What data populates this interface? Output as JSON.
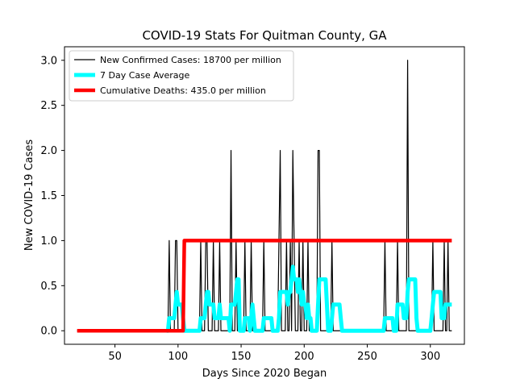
{
  "chart_data": {
    "type": "line",
    "title": "COVID-19 Stats For Quitman County, GA",
    "xlabel": "Days Since 2020 Began",
    "ylabel": "New COVID-19 Cases",
    "xlim": [
      10,
      327
    ],
    "ylim": [
      -0.15,
      3.15
    ],
    "xticks": [
      50,
      100,
      150,
      200,
      250,
      300
    ],
    "yticks": [
      0.0,
      0.5,
      1.0,
      1.5,
      2.0,
      2.5,
      3.0
    ],
    "xtick_labels": [
      "50",
      "100",
      "150",
      "200",
      "250",
      "300"
    ],
    "ytick_labels": [
      "0.0",
      "0.5",
      "1.0",
      "1.5",
      "2.0",
      "2.5",
      "3.0"
    ],
    "grid": false,
    "legend_position": "top-left",
    "series": [
      {
        "name": "New Confirmed Cases: 18700 per million",
        "color": "#000000",
        "points": [
          [
            20,
            0
          ],
          [
            92,
            0
          ],
          [
            93,
            1
          ],
          [
            94,
            0
          ],
          [
            97,
            0
          ],
          [
            98,
            1
          ],
          [
            99,
            1
          ],
          [
            100,
            0
          ],
          [
            117,
            0
          ],
          [
            118,
            1
          ],
          [
            119,
            0
          ],
          [
            121,
            0
          ],
          [
            122,
            1
          ],
          [
            123,
            1
          ],
          [
            124,
            0
          ],
          [
            127,
            0
          ],
          [
            128,
            1
          ],
          [
            129,
            0
          ],
          [
            132,
            0
          ],
          [
            133,
            1
          ],
          [
            134,
            0
          ],
          [
            141,
            0
          ],
          [
            142,
            2
          ],
          [
            143,
            0
          ],
          [
            145,
            0
          ],
          [
            146,
            1
          ],
          [
            147,
            0
          ],
          [
            152,
            0
          ],
          [
            153,
            1
          ],
          [
            154,
            0
          ],
          [
            157,
            0
          ],
          [
            158,
            1
          ],
          [
            159,
            0
          ],
          [
            167,
            0
          ],
          [
            168,
            1
          ],
          [
            169,
            0
          ],
          [
            179,
            0
          ],
          [
            180,
            1
          ],
          [
            181,
            2
          ],
          [
            182,
            0
          ],
          [
            185,
            0
          ],
          [
            186,
            1
          ],
          [
            187,
            0
          ],
          [
            188,
            0
          ],
          [
            189,
            1
          ],
          [
            190,
            0
          ],
          [
            191,
            2
          ],
          [
            192,
            1
          ],
          [
            193,
            0
          ],
          [
            195,
            0
          ],
          [
            196,
            1
          ],
          [
            197,
            0
          ],
          [
            198,
            0
          ],
          [
            199,
            1
          ],
          [
            200,
            0
          ],
          [
            202,
            0
          ],
          [
            203,
            1
          ],
          [
            204,
            0
          ],
          [
            210,
            0
          ],
          [
            211,
            2
          ],
          [
            212,
            2
          ],
          [
            213,
            0
          ],
          [
            221,
            0
          ],
          [
            222,
            1
          ],
          [
            223,
            0
          ],
          [
            263,
            0
          ],
          [
            264,
            1
          ],
          [
            265,
            0
          ],
          [
            273,
            0
          ],
          [
            274,
            1
          ],
          [
            275,
            0
          ],
          [
            281,
            0
          ],
          [
            282,
            3
          ],
          [
            283,
            0
          ],
          [
            301,
            0
          ],
          [
            302,
            1
          ],
          [
            303,
            0
          ],
          [
            310,
            0
          ],
          [
            311,
            1
          ],
          [
            312,
            0
          ],
          [
            313,
            0
          ],
          [
            314,
            1
          ],
          [
            315,
            0
          ],
          [
            317,
            0
          ]
        ]
      },
      {
        "name": "7 Day Case Average",
        "color": "#00ffff",
        "points": [
          [
            91,
            0
          ],
          [
            92,
            0
          ],
          [
            93,
            0.14
          ],
          [
            94,
            0.14
          ],
          [
            95,
            0.14
          ],
          [
            96,
            0.14
          ],
          [
            97,
            0.14
          ],
          [
            98,
            0.29
          ],
          [
            99,
            0.43
          ],
          [
            100,
            0.29
          ],
          [
            101,
            0.29
          ],
          [
            102,
            0.29
          ],
          [
            103,
            0.29
          ],
          [
            104,
            0.14
          ],
          [
            105,
            0
          ],
          [
            106,
            0
          ],
          [
            116,
            0
          ],
          [
            117,
            0
          ],
          [
            118,
            0.14
          ],
          [
            119,
            0.14
          ],
          [
            120,
            0.14
          ],
          [
            121,
            0.14
          ],
          [
            122,
            0.29
          ],
          [
            123,
            0.43
          ],
          [
            124,
            0.43
          ],
          [
            125,
            0.29
          ],
          [
            126,
            0.29
          ],
          [
            127,
            0.29
          ],
          [
            128,
            0.29
          ],
          [
            129,
            0.14
          ],
          [
            130,
            0.14
          ],
          [
            131,
            0.14
          ],
          [
            132,
            0.14
          ],
          [
            133,
            0.29
          ],
          [
            134,
            0.14
          ],
          [
            135,
            0.14
          ],
          [
            136,
            0.14
          ],
          [
            137,
            0.14
          ],
          [
            138,
            0.14
          ],
          [
            139,
            0.14
          ],
          [
            140,
            0.14
          ],
          [
            141,
            0
          ],
          [
            142,
            0.29
          ],
          [
            143,
            0.29
          ],
          [
            144,
            0.29
          ],
          [
            145,
            0.29
          ],
          [
            146,
            0.43
          ],
          [
            147,
            0.57
          ],
          [
            148,
            0.57
          ],
          [
            149,
            0
          ],
          [
            150,
            0
          ],
          [
            151,
            0
          ],
          [
            152,
            0
          ],
          [
            153,
            0.14
          ],
          [
            154,
            0.14
          ],
          [
            155,
            0.14
          ],
          [
            156,
            0.14
          ],
          [
            157,
            0
          ],
          [
            158,
            0.14
          ],
          [
            159,
            0.29
          ],
          [
            160,
            0.14
          ],
          [
            161,
            0
          ],
          [
            162,
            0
          ],
          [
            163,
            0
          ],
          [
            164,
            0
          ],
          [
            165,
            0
          ],
          [
            166,
            0
          ],
          [
            167,
            0
          ],
          [
            168,
            0.14
          ],
          [
            169,
            0.14
          ],
          [
            170,
            0.14
          ],
          [
            171,
            0.14
          ],
          [
            172,
            0.14
          ],
          [
            173,
            0.14
          ],
          [
            174,
            0.14
          ],
          [
            175,
            0
          ],
          [
            176,
            0
          ],
          [
            177,
            0
          ],
          [
            178,
            0
          ],
          [
            179,
            0
          ],
          [
            180,
            0.14
          ],
          [
            181,
            0.43
          ],
          [
            182,
            0.43
          ],
          [
            183,
            0.43
          ],
          [
            184,
            0.43
          ],
          [
            185,
            0.43
          ],
          [
            186,
            0.43
          ],
          [
            187,
            0.29
          ],
          [
            188,
            0.43
          ],
          [
            189,
            0.43
          ],
          [
            190,
            0.57
          ],
          [
            191,
            0.71
          ],
          [
            192,
            0.57
          ],
          [
            193,
            0.57
          ],
          [
            194,
            0.57
          ],
          [
            195,
            0.43
          ],
          [
            196,
            0.57
          ],
          [
            197,
            0.43
          ],
          [
            198,
            0.29
          ],
          [
            199,
            0.43
          ],
          [
            200,
            0.29
          ],
          [
            201,
            0.29
          ],
          [
            202,
            0.14
          ],
          [
            203,
            0.29
          ],
          [
            204,
            0.14
          ],
          [
            205,
            0.14
          ],
          [
            206,
            0
          ],
          [
            207,
            0
          ],
          [
            208,
            0
          ],
          [
            209,
            0
          ],
          [
            210,
            0
          ],
          [
            211,
            0.29
          ],
          [
            212,
            0.57
          ],
          [
            213,
            0.57
          ],
          [
            214,
            0.57
          ],
          [
            215,
            0.57
          ],
          [
            216,
            0.57
          ],
          [
            217,
            0.57
          ],
          [
            218,
            0.29
          ],
          [
            219,
            0
          ],
          [
            220,
            0
          ],
          [
            221,
            0
          ],
          [
            222,
            0.14
          ],
          [
            223,
            0.29
          ],
          [
            224,
            0.29
          ],
          [
            225,
            0.29
          ],
          [
            226,
            0.29
          ],
          [
            227,
            0.29
          ],
          [
            228,
            0.29
          ],
          [
            229,
            0.14
          ],
          [
            230,
            0
          ],
          [
            262,
            0
          ],
          [
            263,
            0
          ],
          [
            264,
            0.14
          ],
          [
            265,
            0.14
          ],
          [
            266,
            0.14
          ],
          [
            267,
            0.14
          ],
          [
            268,
            0.14
          ],
          [
            269,
            0.14
          ],
          [
            270,
            0.14
          ],
          [
            271,
            0
          ],
          [
            272,
            0
          ],
          [
            273,
            0
          ],
          [
            274,
            0.29
          ],
          [
            275,
            0.29
          ],
          [
            276,
            0.29
          ],
          [
            277,
            0.29
          ],
          [
            278,
            0.29
          ],
          [
            279,
            0.14
          ],
          [
            280,
            0.14
          ],
          [
            281,
            0.14
          ],
          [
            282,
            0.43
          ],
          [
            283,
            0.57
          ],
          [
            284,
            0.57
          ],
          [
            285,
            0.57
          ],
          [
            286,
            0.57
          ],
          [
            287,
            0.57
          ],
          [
            288,
            0.57
          ],
          [
            289,
            0.14
          ],
          [
            290,
            0
          ],
          [
            291,
            0
          ],
          [
            292,
            0
          ],
          [
            293,
            0
          ],
          [
            294,
            0
          ],
          [
            295,
            0
          ],
          [
            296,
            0
          ],
          [
            297,
            0
          ],
          [
            298,
            0
          ],
          [
            299,
            0
          ],
          [
            300,
            0
          ],
          [
            301,
            0.14
          ],
          [
            302,
            0.29
          ],
          [
            303,
            0.43
          ],
          [
            304,
            0.43
          ],
          [
            305,
            0.43
          ],
          [
            306,
            0.43
          ],
          [
            307,
            0.43
          ],
          [
            308,
            0.43
          ],
          [
            309,
            0.14
          ],
          [
            310,
            0.14
          ],
          [
            311,
            0.14
          ],
          [
            312,
            0.29
          ],
          [
            313,
            0.29
          ],
          [
            314,
            0.29
          ],
          [
            315,
            0.29
          ],
          [
            316,
            0.29
          ],
          [
            317,
            0.29
          ]
        ]
      },
      {
        "name": "Cumulative Deaths: 435.0 per million",
        "color": "#ff0000",
        "points": [
          [
            20,
            0
          ],
          [
            103,
            0
          ],
          [
            104,
            0
          ],
          [
            105,
            1
          ],
          [
            317,
            1
          ]
        ]
      }
    ]
  }
}
